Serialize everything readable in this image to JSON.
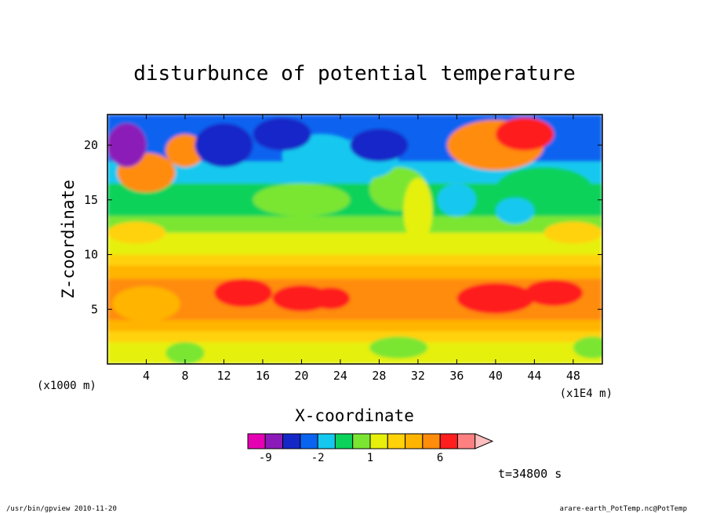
{
  "chart_data": {
    "type": "heatmap",
    "title": "disturbunce of potential temperature",
    "xlabel": "X-coordinate",
    "ylabel": "Z-coordinate",
    "x_unit": "(x1E4 m)",
    "y_unit": "(x1000 m)",
    "x_ticks": [
      "4",
      "8",
      "12",
      "16",
      "20",
      "24",
      "28",
      "32",
      "36",
      "40",
      "44",
      "48"
    ],
    "x_tick_values": [
      4,
      8,
      12,
      16,
      20,
      24,
      28,
      32,
      36,
      40,
      44,
      48
    ],
    "y_ticks": [
      "5",
      "10",
      "15",
      "20"
    ],
    "y_tick_values": [
      5,
      10,
      15,
      20
    ],
    "xlim": [
      0,
      51
    ],
    "ylim": [
      0,
      22.8
    ],
    "colorbar": {
      "labels": [
        "-9",
        "-2",
        "1",
        "6"
      ],
      "levels": [
        -12,
        -9,
        -6,
        -3,
        -2,
        -1,
        0,
        1,
        2,
        3,
        4,
        6,
        8,
        10,
        14
      ],
      "colors": [
        "#e600b4",
        "#8c1ab8",
        "#1428c8",
        "#0a64f0",
        "#14c8f0",
        "#0ad25a",
        "#7ae632",
        "#e6f00a",
        "#ffd20a",
        "#ffb400",
        "#ff8c0a",
        "#ff1e1e",
        "#ff8080",
        "#ffbebe"
      ]
    },
    "annotation": "t=34800 s"
  },
  "footer": {
    "left": "/usr/bin/gpview  2010-11-20",
    "right": "arare-earth_PotTemp.nc@PotTemp"
  }
}
